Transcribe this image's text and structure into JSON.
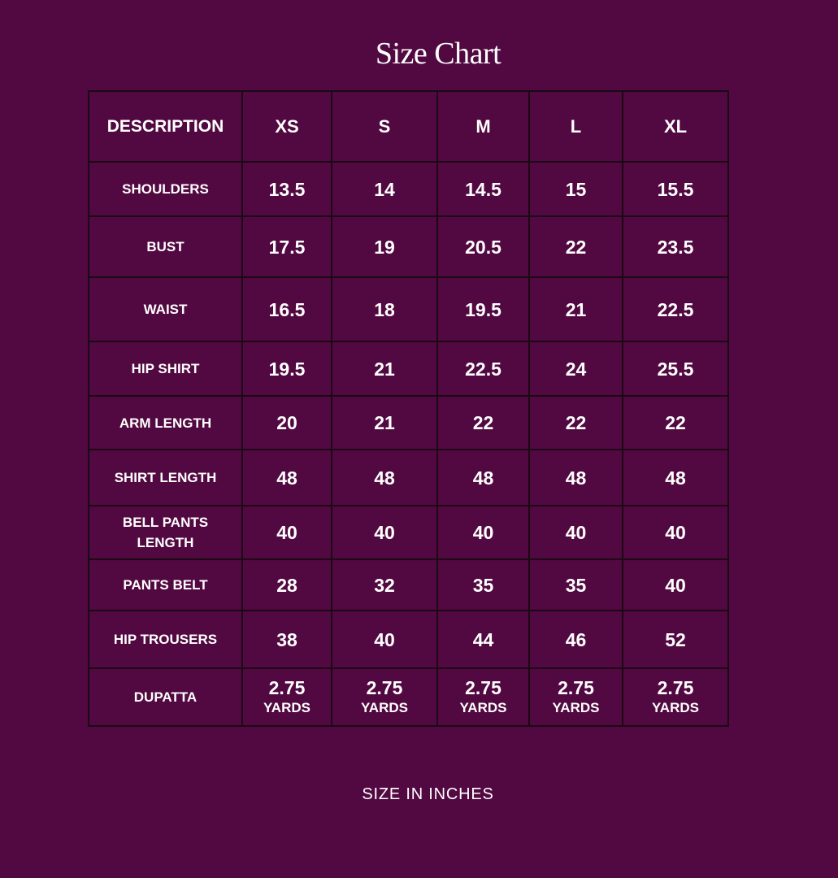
{
  "title": "Size Chart",
  "chart_data": {
    "type": "table",
    "columns": [
      "DESCRIPTION",
      "XS",
      "S",
      "M",
      "L",
      "XL"
    ],
    "rows": [
      {
        "label": "SHOULDERS",
        "values": [
          "13.5",
          "14",
          "14.5",
          "15",
          "15.5"
        ]
      },
      {
        "label": "BUST",
        "values": [
          "17.5",
          "19",
          "20.5",
          "22",
          "23.5"
        ]
      },
      {
        "label": "WAIST",
        "values": [
          "16.5",
          "18",
          "19.5",
          "21",
          "22.5"
        ]
      },
      {
        "label": "HIP SHIRT",
        "values": [
          "19.5",
          "21",
          "22.5",
          "24",
          "25.5"
        ]
      },
      {
        "label": "ARM LENGTH",
        "values": [
          "20",
          "21",
          "22",
          "22",
          "22"
        ]
      },
      {
        "label": "SHIRT LENGTH",
        "values": [
          "48",
          "48",
          "48",
          "48",
          "48"
        ]
      },
      {
        "label": "BELL PANTS LENGTH",
        "values": [
          "40",
          "40",
          "40",
          "40",
          "40"
        ]
      },
      {
        "label": "PANTS BELT",
        "values": [
          "28",
          "32",
          "35",
          "35",
          "40"
        ]
      },
      {
        "label": "HIP TROUSERS",
        "values": [
          "38",
          "40",
          "44",
          "46",
          "52"
        ]
      },
      {
        "label": "DUPATTA",
        "values": [
          "2.75",
          "2.75",
          "2.75",
          "2.75",
          "2.75"
        ],
        "unit": "YARDS"
      }
    ]
  },
  "footer": "SIZE IN INCHES",
  "colors": {
    "background": "#520840",
    "text": "#ffffff",
    "grid": "#1a0a14"
  }
}
